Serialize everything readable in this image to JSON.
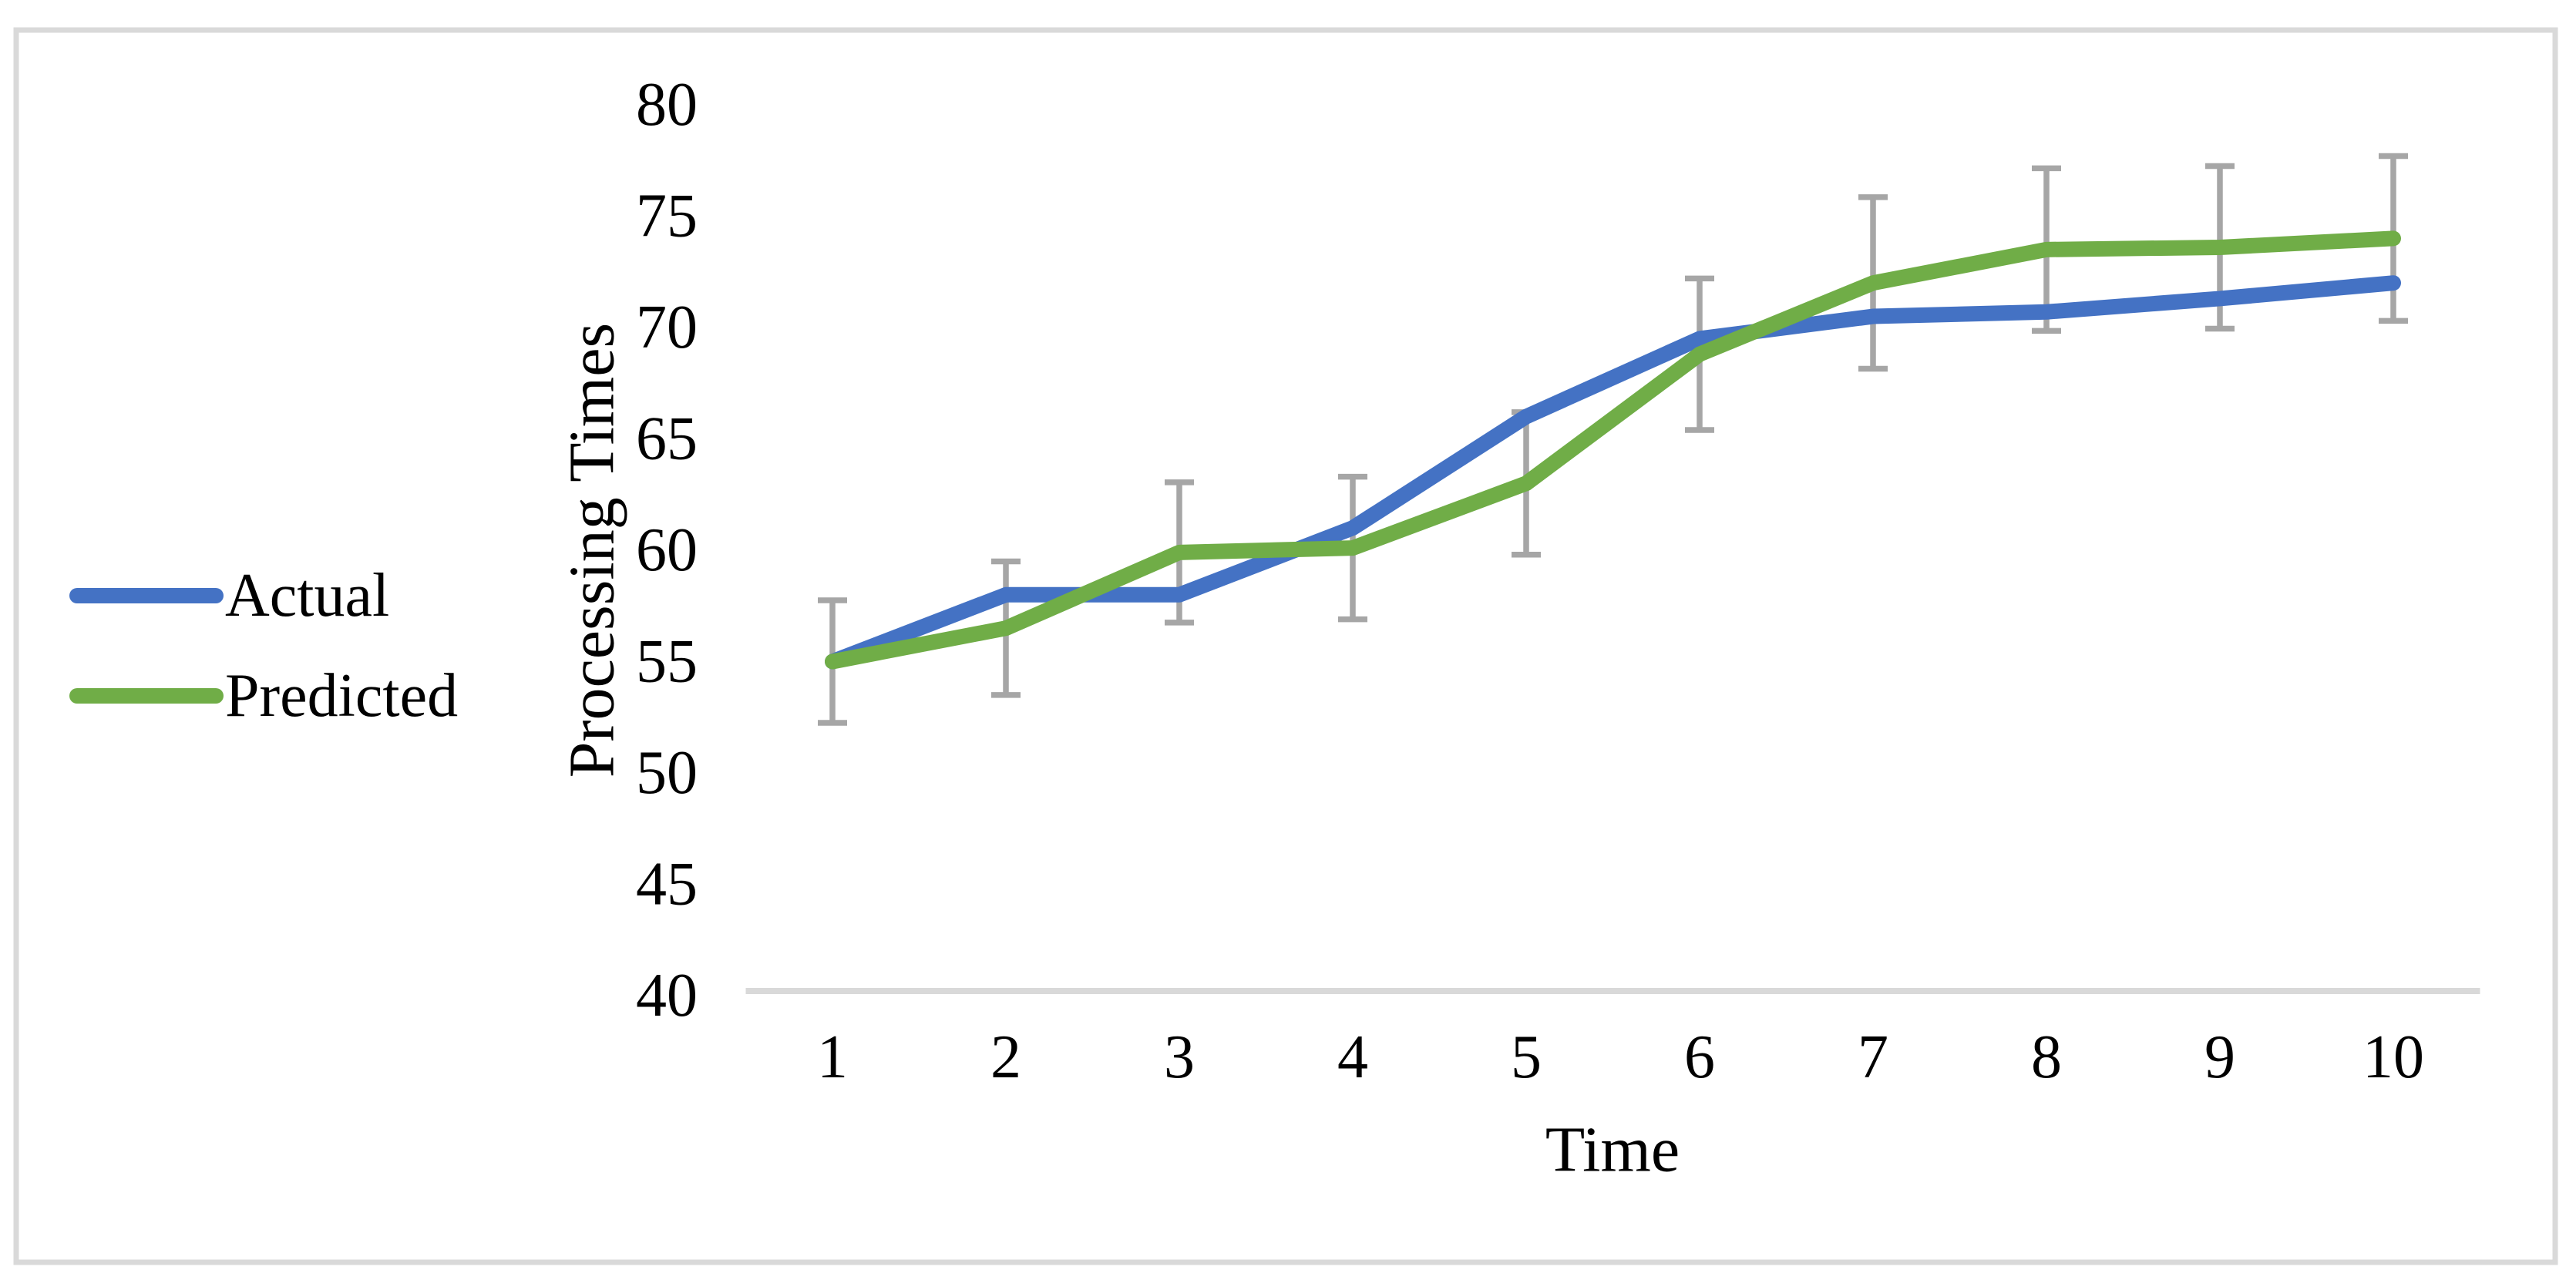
{
  "figure": {
    "background": "#ffffff",
    "border_color": "#D9D9D9"
  },
  "chart_data": {
    "type": "line",
    "title": "",
    "xlabel": "Time",
    "ylabel": "Processing Times",
    "categories": [
      1,
      2,
      3,
      4,
      5,
      6,
      7,
      8,
      9,
      10
    ],
    "series": [
      {
        "name": "Actual",
        "color": "#4472C4",
        "values": [
          55,
          58,
          58,
          61,
          66,
          69.5,
          70.5,
          70.7,
          71.3,
          72
        ]
      },
      {
        "name": "Predicted",
        "color": "#70AD47",
        "values": [
          55,
          56.5,
          59.9,
          60.1,
          63,
          68.8,
          72,
          73.5,
          73.6,
          74
        ]
      }
    ],
    "error_bars": {
      "attached_to": "Predicted",
      "color": "#A6A6A6",
      "plus_minus": [
        2.75,
        3.0,
        3.15,
        3.2,
        3.2,
        3.4,
        3.85,
        3.65,
        3.65,
        3.7
      ]
    },
    "ylim": [
      40,
      80
    ],
    "ytick_step": 5,
    "grid": false,
    "legend_position": "middle-left",
    "axis_color": "#D9D9D9",
    "error_bar_color": "#A6A6A6",
    "text_color": "#000000"
  }
}
